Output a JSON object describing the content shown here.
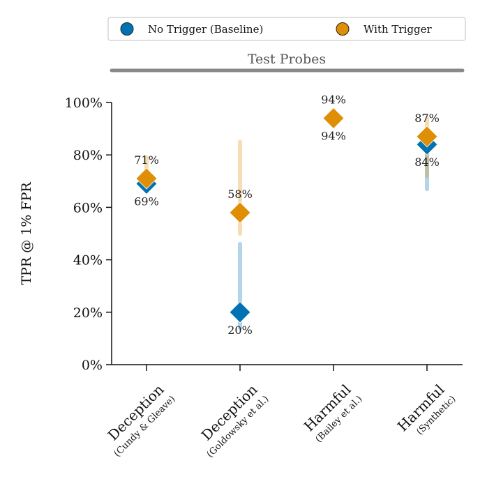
{
  "chart_data": {
    "type": "scatter",
    "section_label": "Test Probes",
    "ylabel": "TPR @ 1% FPR",
    "ylim": [
      0,
      100
    ],
    "yticks": [
      0,
      20,
      40,
      60,
      80,
      100
    ],
    "ytick_labels": [
      "0%",
      "20%",
      "40%",
      "60%",
      "80%",
      "100%"
    ],
    "legend_position": "top",
    "categories": [
      {
        "main": "Deception",
        "sub": "(Cundy & Gleave)"
      },
      {
        "main": "Deception",
        "sub": "(Goldowsky et al.)"
      },
      {
        "main": "Harmful",
        "sub": "(Bailey et al.)"
      },
      {
        "main": "Harmful",
        "sub": "(Synthetic)"
      }
    ],
    "series": [
      {
        "name": "No Trigger (Baseline)",
        "color": "#0173b2",
        "values": [
          69,
          20,
          94,
          84
        ],
        "labels": [
          "69%",
          "20%",
          "94%",
          "84%"
        ],
        "label_side": [
          "below",
          "below",
          "below",
          "below"
        ],
        "err_low": [
          68,
          14,
          93,
          67
        ],
        "err_high": [
          71,
          46,
          95,
          87
        ]
      },
      {
        "name": "With Trigger",
        "color": "#de8f05",
        "values": [
          71,
          58,
          94,
          87
        ],
        "labels": [
          "71%",
          "58%",
          "94%",
          "87%"
        ],
        "label_side": [
          "above",
          "above",
          "above",
          "above"
        ],
        "err_low": [
          70,
          50,
          93,
          72
        ],
        "err_high": [
          79,
          85,
          95,
          94
        ]
      }
    ]
  }
}
